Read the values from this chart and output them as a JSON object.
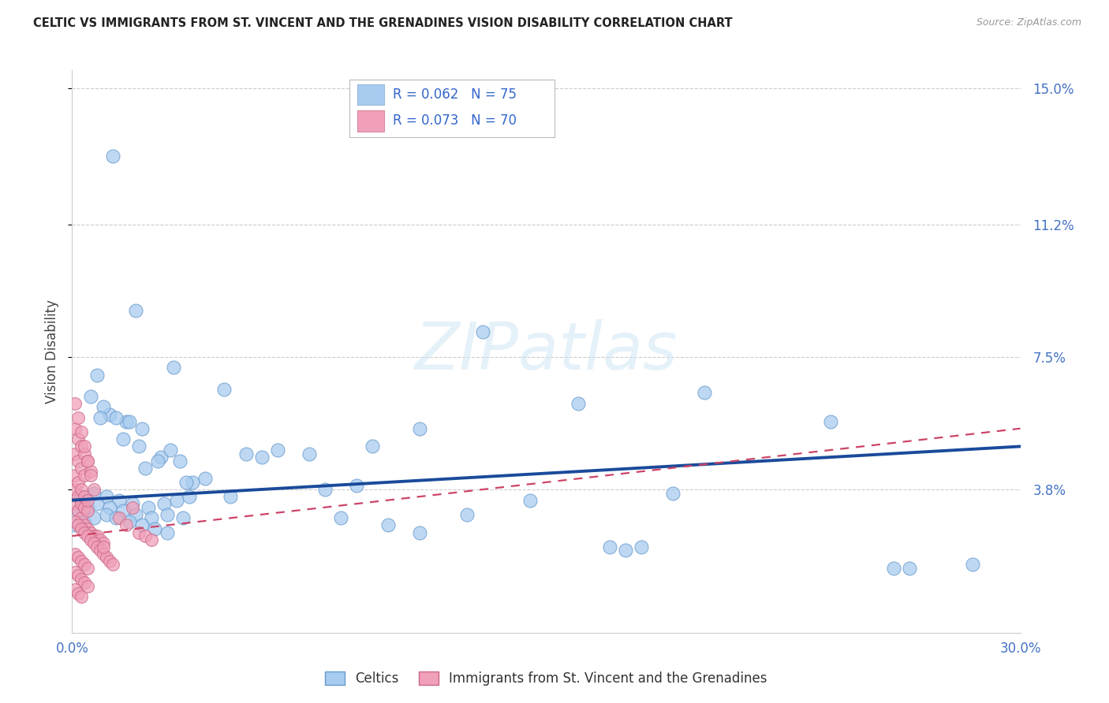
{
  "title": "CELTIC VS IMMIGRANTS FROM ST. VINCENT AND THE GRENADINES VISION DISABILITY CORRELATION CHART",
  "source": "Source: ZipAtlas.com",
  "ylabel": "Vision Disability",
  "xlim": [
    0.0,
    0.3
  ],
  "ylim": [
    -0.002,
    0.155
  ],
  "yticks": [
    0.038,
    0.075,
    0.112,
    0.15
  ],
  "ytick_labels": [
    "3.8%",
    "7.5%",
    "11.2%",
    "15.0%"
  ],
  "label_celtics": "Celtics",
  "label_immigrants": "Immigrants from St. Vincent and the Grenadines",
  "color_celtics": "#a8ccf0",
  "color_celtics_edge": "#6699cc",
  "color_celtics_line": "#1a4a9a",
  "color_immigrants": "#f0a0b8",
  "color_immigrants_edge": "#cc6688",
  "color_immigrants_line": "#cc4466",
  "celtics_line_x": [
    0.0,
    0.3
  ],
  "celtics_line_y": [
    0.035,
    0.05
  ],
  "immigrants_line_x": [
    0.0,
    0.3
  ],
  "immigrants_line_y": [
    0.025,
    0.055
  ],
  "celtics_x": [
    0.013,
    0.02,
    0.032,
    0.048,
    0.008,
    0.012,
    0.017,
    0.022,
    0.01,
    0.016,
    0.021,
    0.028,
    0.034,
    0.038,
    0.006,
    0.009,
    0.014,
    0.018,
    0.023,
    0.027,
    0.031,
    0.036,
    0.003,
    0.007,
    0.011,
    0.015,
    0.019,
    0.024,
    0.029,
    0.033,
    0.037,
    0.002,
    0.005,
    0.008,
    0.012,
    0.016,
    0.02,
    0.025,
    0.03,
    0.035,
    0.001,
    0.004,
    0.007,
    0.011,
    0.014,
    0.018,
    0.022,
    0.026,
    0.03,
    0.042,
    0.055,
    0.095,
    0.13,
    0.16,
    0.2,
    0.24,
    0.06,
    0.075,
    0.11,
    0.145,
    0.19,
    0.08,
    0.1,
    0.125,
    0.17,
    0.285,
    0.065,
    0.09,
    0.18,
    0.265,
    0.05,
    0.085,
    0.11,
    0.175,
    0.26
  ],
  "celtics_y": [
    0.131,
    0.088,
    0.072,
    0.066,
    0.07,
    0.059,
    0.057,
    0.055,
    0.061,
    0.052,
    0.05,
    0.047,
    0.046,
    0.04,
    0.064,
    0.058,
    0.058,
    0.057,
    0.044,
    0.046,
    0.049,
    0.04,
    0.036,
    0.037,
    0.036,
    0.035,
    0.034,
    0.033,
    0.034,
    0.035,
    0.036,
    0.032,
    0.033,
    0.034,
    0.033,
    0.032,
    0.031,
    0.03,
    0.031,
    0.03,
    0.028,
    0.029,
    0.03,
    0.031,
    0.03,
    0.029,
    0.028,
    0.027,
    0.026,
    0.041,
    0.048,
    0.05,
    0.082,
    0.062,
    0.065,
    0.057,
    0.047,
    0.048,
    0.055,
    0.035,
    0.037,
    0.038,
    0.028,
    0.031,
    0.022,
    0.017,
    0.049,
    0.039,
    0.022,
    0.016,
    0.036,
    0.03,
    0.026,
    0.021,
    0.016
  ],
  "immigrants_x": [
    0.001,
    0.002,
    0.003,
    0.004,
    0.005,
    0.006,
    0.007,
    0.008,
    0.009,
    0.01,
    0.001,
    0.002,
    0.003,
    0.004,
    0.005,
    0.001,
    0.002,
    0.003,
    0.004,
    0.005,
    0.001,
    0.002,
    0.003,
    0.004,
    0.001,
    0.002,
    0.003,
    0.004,
    0.005,
    0.006,
    0.001,
    0.002,
    0.003,
    0.004,
    0.005,
    0.006,
    0.007,
    0.001,
    0.002,
    0.003,
    0.004,
    0.005,
    0.006,
    0.007,
    0.008,
    0.009,
    0.01,
    0.011,
    0.012,
    0.013,
    0.015,
    0.017,
    0.019,
    0.021,
    0.023,
    0.025,
    0.001,
    0.002,
    0.003,
    0.004,
    0.005,
    0.001,
    0.002,
    0.003,
    0.004,
    0.005,
    0.001,
    0.002,
    0.003,
    0.01
  ],
  "immigrants_y": [
    0.034,
    0.032,
    0.03,
    0.028,
    0.027,
    0.026,
    0.025,
    0.025,
    0.024,
    0.023,
    0.038,
    0.036,
    0.034,
    0.033,
    0.032,
    0.042,
    0.04,
    0.038,
    0.036,
    0.035,
    0.048,
    0.046,
    0.044,
    0.042,
    0.055,
    0.052,
    0.05,
    0.048,
    0.046,
    0.043,
    0.062,
    0.058,
    0.054,
    0.05,
    0.046,
    0.042,
    0.038,
    0.029,
    0.028,
    0.027,
    0.026,
    0.025,
    0.024,
    0.023,
    0.022,
    0.021,
    0.02,
    0.019,
    0.018,
    0.017,
    0.03,
    0.028,
    0.033,
    0.026,
    0.025,
    0.024,
    0.02,
    0.019,
    0.018,
    0.017,
    0.016,
    0.015,
    0.014,
    0.013,
    0.012,
    0.011,
    0.01,
    0.009,
    0.008,
    0.022
  ]
}
